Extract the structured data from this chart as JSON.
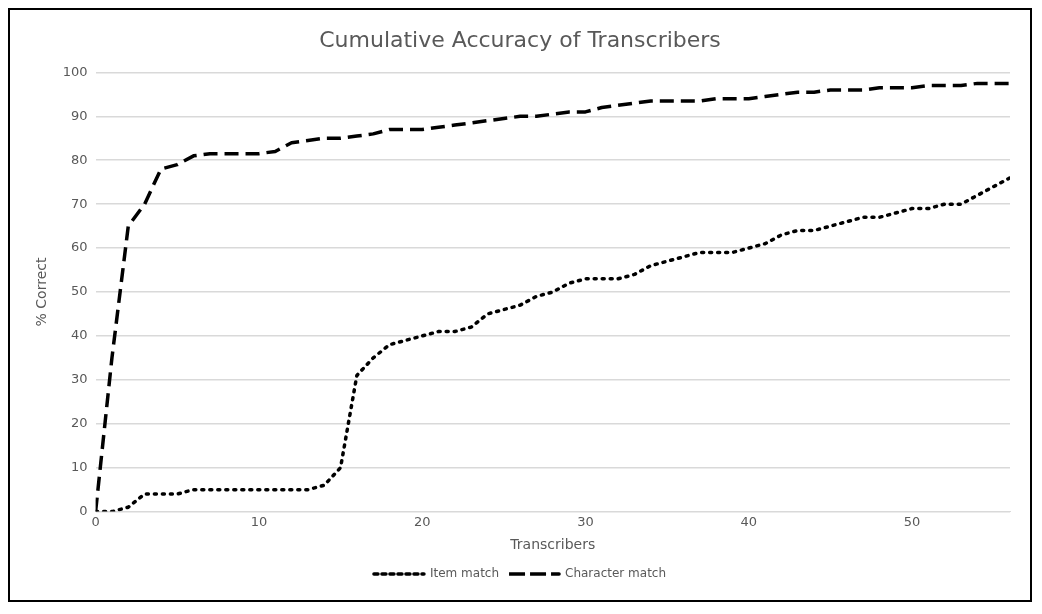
{
  "chart_data": {
    "type": "line",
    "title": "Cumulative Accuracy of Transcribers",
    "xlabel": "Transcribers",
    "ylabel": "% Correct",
    "x": [
      0,
      1,
      2,
      3,
      4,
      5,
      6,
      7,
      8,
      9,
      10,
      11,
      12,
      13,
      14,
      15,
      16,
      17,
      18,
      19,
      20,
      21,
      22,
      23,
      24,
      25,
      26,
      27,
      28,
      29,
      30,
      31,
      32,
      33,
      34,
      35,
      36,
      37,
      38,
      39,
      40,
      41,
      42,
      43,
      44,
      45,
      46,
      47,
      48,
      49,
      50,
      51,
      52,
      53,
      54,
      55,
      56
    ],
    "series": [
      {
        "name": "Item match",
        "color": "#000000",
        "line_style": "dotted",
        "values": [
          0,
          0,
          1,
          4,
          4,
          4,
          5,
          5,
          5,
          5,
          5,
          5,
          5,
          5,
          6,
          10,
          31,
          35,
          38,
          39,
          40,
          41,
          41,
          42,
          45,
          46,
          47,
          49,
          50,
          52,
          53,
          53,
          53,
          54,
          56,
          57,
          58,
          59,
          59,
          59,
          60,
          61,
          63,
          64,
          64,
          65,
          66,
          67,
          67,
          68,
          69,
          69,
          70,
          70,
          72,
          74,
          76
        ]
      },
      {
        "name": "Character match",
        "color": "#000000",
        "line_style": "dashed",
        "values": [
          0,
          35,
          65,
          70,
          78,
          79,
          81,
          81.5,
          81.5,
          81.5,
          81.5,
          82,
          84,
          84.5,
          85,
          85,
          85.5,
          86,
          87,
          87,
          87,
          87.5,
          88,
          88.5,
          89,
          89.5,
          90,
          90,
          90.5,
          91,
          91,
          92,
          92.5,
          93,
          93.5,
          93.5,
          93.5,
          93.5,
          94,
          94,
          94,
          94.5,
          95,
          95.5,
          95.5,
          96,
          96,
          96,
          96.5,
          96.5,
          96.5,
          97,
          97,
          97,
          97.5,
          97.5,
          97.5
        ]
      }
    ],
    "xlim": [
      0,
      56
    ],
    "xticks": [
      0,
      10,
      20,
      30,
      40,
      50
    ],
    "ylim": [
      0,
      100
    ],
    "yticks": [
      0,
      10,
      20,
      30,
      40,
      50,
      60,
      70,
      80,
      90,
      100
    ],
    "grid": "y",
    "legend": "bottom",
    "marker": "none"
  }
}
